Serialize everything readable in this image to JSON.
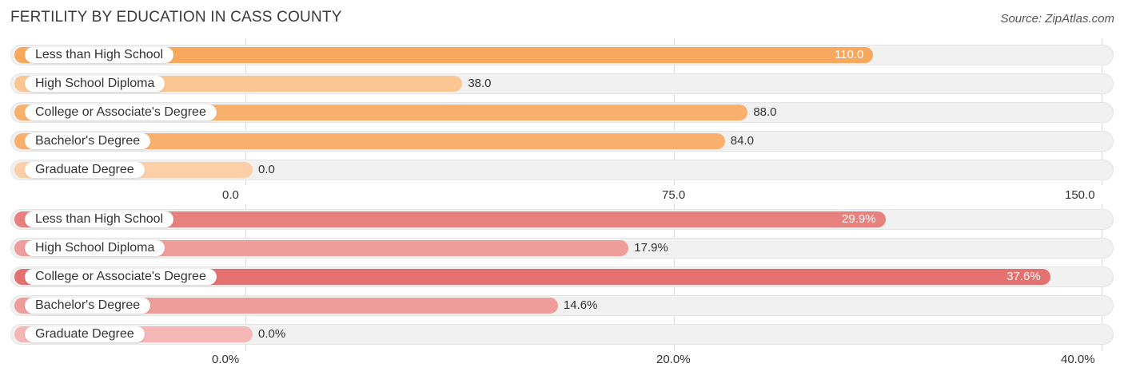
{
  "title": "FERTILITY BY EDUCATION IN CASS COUNTY",
  "source": "Source: ZipAtlas.com",
  "chart_data": [
    {
      "type": "bar",
      "orientation": "horizontal",
      "categories": [
        "Less than High School",
        "High School Diploma",
        "College or Associate's Degree",
        "Bachelor's Degree",
        "Graduate Degree"
      ],
      "values": [
        110.0,
        38.0,
        88.0,
        84.0,
        0.0
      ],
      "value_labels": [
        "110.0",
        "38.0",
        "88.0",
        "84.0",
        "0.0"
      ],
      "xlim": [
        0,
        150
      ],
      "ticks": [
        0,
        75,
        150
      ],
      "tick_labels": [
        "0.0",
        "75.0",
        "150.0"
      ],
      "colors": [
        "#f8a85d",
        "#fbc692",
        "#f9b06c",
        "#f9b06c",
        "#fccfa8"
      ]
    },
    {
      "type": "bar",
      "orientation": "horizontal",
      "categories": [
        "Less than High School",
        "High School Diploma",
        "College or Associate's Degree",
        "Bachelor's Degree",
        "Graduate Degree"
      ],
      "values": [
        29.9,
        17.9,
        37.6,
        14.6,
        0.0
      ],
      "value_labels": [
        "29.9%",
        "17.9%",
        "37.6%",
        "14.6%",
        "0.0%"
      ],
      "xlim": [
        0,
        40
      ],
      "ticks": [
        0,
        20,
        40
      ],
      "tick_labels": [
        "0.0%",
        "20.0%",
        "40.0%"
      ],
      "colors": [
        "#e8807e",
        "#ef9d9b",
        "#e4716f",
        "#ef9d9b",
        "#f5b7b6"
      ]
    }
  ]
}
